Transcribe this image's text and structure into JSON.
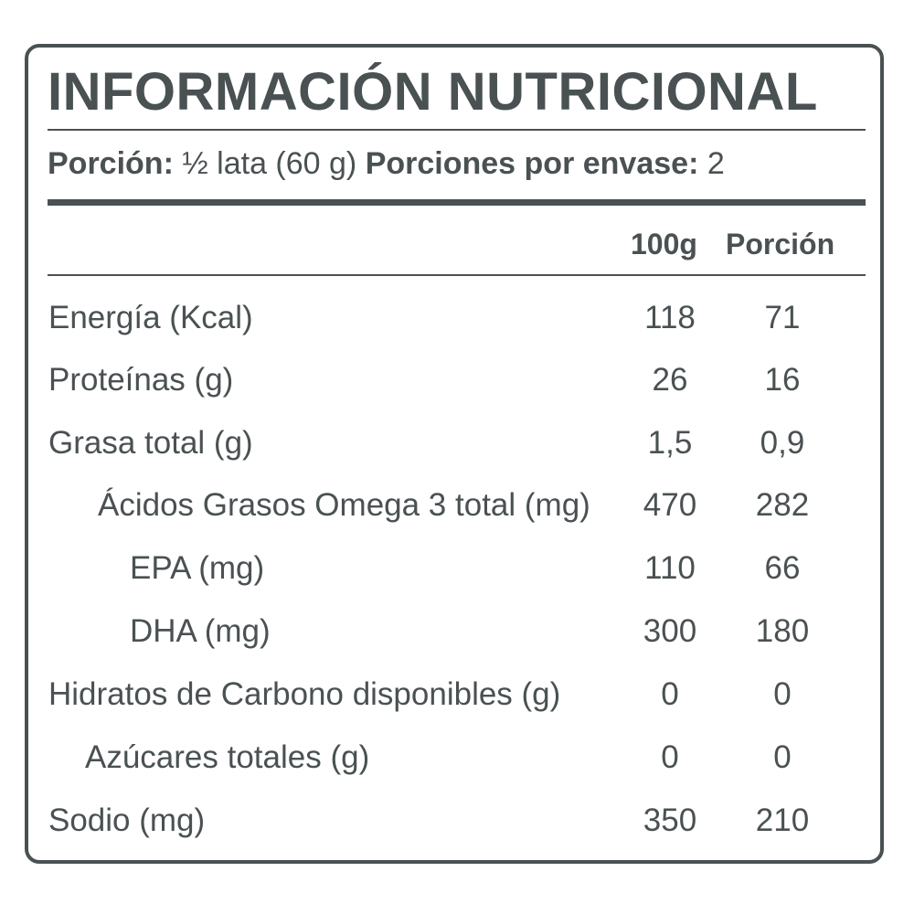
{
  "title": "INFORMACIÓN NUTRICIONAL",
  "serving": {
    "portion_label": "Porción:",
    "portion_value": "½ lata (60 g)",
    "servings_label": "Porciones por envase:",
    "servings_value": "2"
  },
  "columns": {
    "per100": "100g",
    "portion": "Porción"
  },
  "rows": [
    {
      "label": "Energía (Kcal)",
      "v100": "118",
      "portion": "71"
    },
    {
      "label": "Proteínas (g)",
      "v100": "26",
      "portion": "16"
    },
    {
      "label": "Grasa total (g)",
      "v100": "1,5",
      "portion": "0,9"
    },
    {
      "label": "Ácidos Grasos Omega 3 total (mg)",
      "v100": "470",
      "portion": "282"
    },
    {
      "label": "EPA (mg)",
      "v100": "110",
      "portion": "66"
    },
    {
      "label": "DHA (mg)",
      "v100": "300",
      "portion": "180"
    },
    {
      "label": "Hidratos de Carbono disponibles (g)",
      "v100": "0",
      "portion": "0"
    },
    {
      "label": "Azúcares totales (g)",
      "v100": "0",
      "portion": "0"
    },
    {
      "label": "Sodio (mg)",
      "v100": "350",
      "portion": "210"
    }
  ]
}
